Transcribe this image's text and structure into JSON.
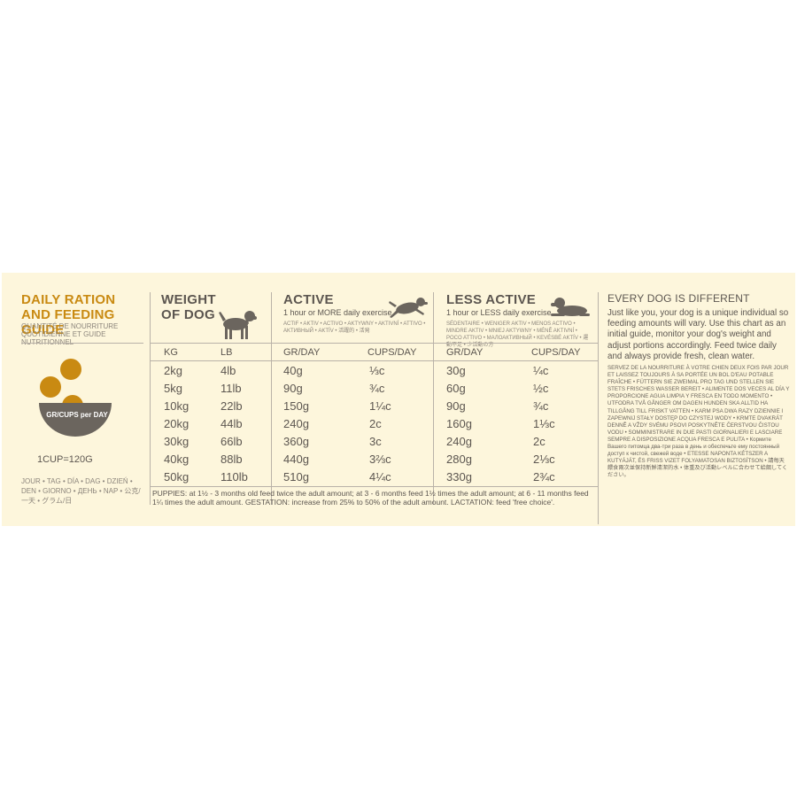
{
  "brand": {
    "title": "DAILY RATION AND FEEDING GUIDE",
    "subtitle": "QUANTITÉ DE NOURRITURE QUOTIDIENNE ET GUIDE NUTRITIONNEL",
    "bowl_label": "GR/CUPS per DAY",
    "cup_label": "1CUP=120G",
    "languages": "JOUR • TAG • DÍA • DAG • DZIEŃ • DEN • GIORNO • ДЕНЬ • NAP • 公克/一天 • グラム/日"
  },
  "weight": {
    "title": "WEIGHT OF DOG",
    "col_kg": "KG",
    "col_lb": "LB"
  },
  "active": {
    "title": "ACTIVE",
    "subtitle": "1 hour or MORE daily exercise",
    "translations": "ACTIF • AKTIV • ACTIVO • AKTYWNY • AKTIVNÍ • ATTIVO • AKTИВНЫЙ • AKTÍV • 活躍的 • 活発",
    "col_gr": "GR/DAY",
    "col_cups": "CUPS/DAY"
  },
  "less_active": {
    "title": "LESS ACTIVE",
    "subtitle": "1 hour or LESS daily exercise",
    "translations": "SÉDENTAIRE • WENIGER AKTIV • MENOS ACTIVO • MINDRE AKTIV • MNIEJ AKTYWNY • MÉNĚ AKTIVNÍ • POCO ATTIVO • МАЛОАКТИВНЫЙ • KEVÉSBÉ AKTÍV • 運動不足 • 少活動の方",
    "col_gr": "GR/DAY",
    "col_cups": "CUPS/DAY"
  },
  "rows": [
    {
      "kg": "2kg",
      "lb": "4lb",
      "a_gr": "40g",
      "a_cups": "⅓c",
      "l_gr": "30g",
      "l_cups": "¼c"
    },
    {
      "kg": "5kg",
      "lb": "11lb",
      "a_gr": "90g",
      "a_cups": "¾c",
      "l_gr": "60g",
      "l_cups": "½c"
    },
    {
      "kg": "10kg",
      "lb": "22lb",
      "a_gr": "150g",
      "a_cups": "1¼c",
      "l_gr": "90g",
      "l_cups": "¾c"
    },
    {
      "kg": "20kg",
      "lb": "44lb",
      "a_gr": "240g",
      "a_cups": "2c",
      "l_gr": "160g",
      "l_cups": "1⅓c"
    },
    {
      "kg": "30kg",
      "lb": "66lb",
      "a_gr": "360g",
      "a_cups": "3c",
      "l_gr": "240g",
      "l_cups": "2c"
    },
    {
      "kg": "40kg",
      "lb": "88lb",
      "a_gr": "440g",
      "a_cups": "3⅔c",
      "l_gr": "280g",
      "l_cups": "2⅓c"
    },
    {
      "kg": "50kg",
      "lb": "110lb",
      "a_gr": "510g",
      "a_cups": "4¼c",
      "l_gr": "330g",
      "l_cups": "2¾c"
    }
  ],
  "footnote": "PUPPIES: at 1½ - 3 months old feed twice the adult amount; at 3 - 6 months feed 1½ times the adult amount; at 6 - 11 months feed 1¼ times the adult amount. GESTATION: increase from 25% to 50% of the adult amount. LACTATION: feed 'free choice'.",
  "every_dog": {
    "title": "EVERY DOG IS DIFFERENT",
    "body": "Just like you, your dog is a unique individual so feeding amounts will vary. Use this chart as an initial guide, monitor your dog's weight and adjust portions accordingly. Feed twice daily and always provide fresh, clean water.",
    "translations": "SERVEZ DE LA NOURRITURE À VOTRE CHIEN DEUX FOIS PAR JOUR ET LAISSEZ TOUJOURS À SA PORTÉE UN BOL D'EAU POTABLE FRAÎCHE • FÜTTERN SIE ZWEIMAL PRO TAG UND STELLEN SIE STETS FRISCHES WASSER BEREIT • ALIMENTE DOS VECES AL DÍA Y PROPORCIONE AGUA LIMPIA Y FRESCA EN TODO MOMENTO • UTFODRA TVÅ GÅNGER OM DAGEN HUNDEN SKA ALLTID HA TILLGÅNG TILL FRISKT VATTEN • KARM PSA DWA RAZY DZIENNIE I ZAPEWNIJ STAŁY DOSTĘP DO CZYSTEJ WODY • KRMTE DVAKRÁT DENNĚ A VŽDY SVÉMU PSOVI POSKYTNĚTE ČERSTVOU ČISTOU VODU • SOMMINISTRARE IN DUE PASTI GIORNALIERI E LASCIARE SEMPRE A DISPOSIZIONE ACQUA FRESCA E PULITA • Кормите Вашего питомца два-три раза в день и обеспечьте ему постоянный доступ к чистой, свежей воде • ETESSE NAPONTA KÉTSZER A KUTYÁJÁT, ÉS FRISS VIZET FOLYAMATOSAN BIZTOSÍTSON • 請每天餵食兩次並保持新鮮清潔的水 • 体重及び活動レベルに合わせて給餌してください。"
  },
  "colors": {
    "accent": "#c98a12",
    "panel": "#fdf6dc",
    "text": "#5c5650",
    "bowl": "#6b655e"
  }
}
